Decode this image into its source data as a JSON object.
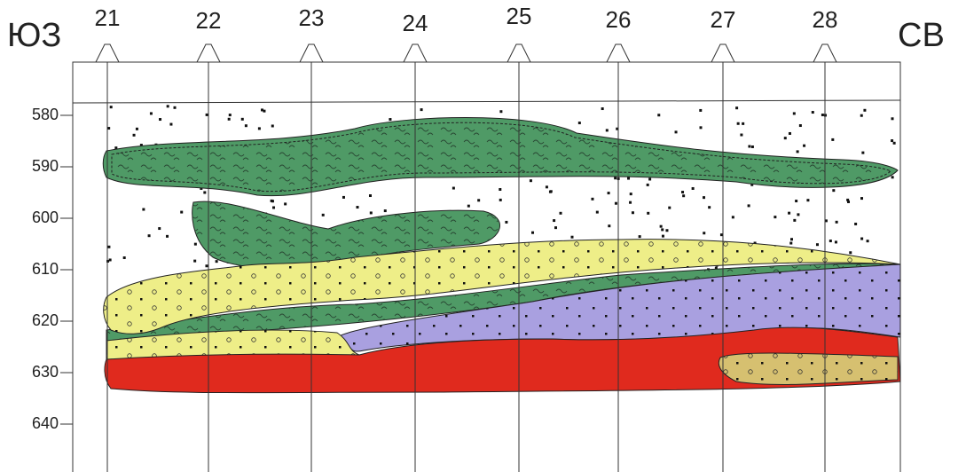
{
  "header": {
    "left": "ЮЗ",
    "right": "СВ"
  },
  "wells": [
    "21",
    "22",
    "23",
    "24",
    "25",
    "26",
    "27",
    "28"
  ],
  "depths": [
    "580",
    "590",
    "600",
    "610",
    "620",
    "630",
    "640"
  ]
}
